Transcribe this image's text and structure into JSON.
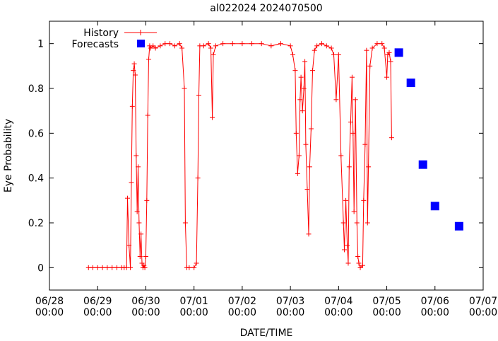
{
  "chart_data": {
    "type": "line",
    "title": "al022024 2024070500",
    "xlabel": "DATE/TIME",
    "ylabel": "Eye Probability",
    "xlim": [
      "06/28 00:00",
      "07/07 00:00"
    ],
    "ylim": [
      -0.1,
      1.1
    ],
    "x_ticks": [
      {
        "date": "06/28",
        "time": "00:00",
        "day": 0
      },
      {
        "date": "06/29",
        "time": "00:00",
        "day": 1
      },
      {
        "date": "06/30",
        "time": "00:00",
        "day": 2
      },
      {
        "date": "07/01",
        "time": "00:00",
        "day": 3
      },
      {
        "date": "07/02",
        "time": "00:00",
        "day": 4
      },
      {
        "date": "07/03",
        "time": "00:00",
        "day": 5
      },
      {
        "date": "07/04",
        "time": "00:00",
        "day": 6
      },
      {
        "date": "07/05",
        "time": "00:00",
        "day": 7
      },
      {
        "date": "07/06",
        "time": "00:00",
        "day": 8
      },
      {
        "date": "07/07",
        "time": "00:00",
        "day": 9
      }
    ],
    "y_ticks": [
      "0",
      "0.2",
      "0.4",
      "0.6",
      "0.8",
      "1"
    ],
    "legend_position": "top-left",
    "series": [
      {
        "name": "History",
        "color": "#ff0000",
        "marker": "plus",
        "points": [
          [
            0.81,
            0.0
          ],
          [
            0.9,
            0.0
          ],
          [
            1.0,
            0.0
          ],
          [
            1.1,
            0.0
          ],
          [
            1.2,
            0.0
          ],
          [
            1.3,
            0.0
          ],
          [
            1.4,
            0.0
          ],
          [
            1.5,
            0.0
          ],
          [
            1.55,
            0.0
          ],
          [
            1.6,
            0.0
          ],
          [
            1.62,
            0.31
          ],
          [
            1.65,
            0.1
          ],
          [
            1.68,
            0.0
          ],
          [
            1.7,
            0.38
          ],
          [
            1.72,
            0.72
          ],
          [
            1.74,
            0.88
          ],
          [
            1.76,
            0.91
          ],
          [
            1.78,
            0.86
          ],
          [
            1.8,
            0.5
          ],
          [
            1.82,
            0.25
          ],
          [
            1.84,
            0.45
          ],
          [
            1.86,
            0.2
          ],
          [
            1.88,
            0.05
          ],
          [
            1.9,
            0.15
          ],
          [
            1.92,
            0.02
          ],
          [
            1.94,
            0.0
          ],
          [
            1.96,
            0.01
          ],
          [
            1.98,
            0.0
          ],
          [
            2.0,
            0.05
          ],
          [
            2.02,
            0.3
          ],
          [
            2.04,
            0.68
          ],
          [
            2.06,
            0.93
          ],
          [
            2.08,
            0.99
          ],
          [
            2.1,
            0.98
          ],
          [
            2.15,
            0.99
          ],
          [
            2.2,
            0.98
          ],
          [
            2.3,
            0.99
          ],
          [
            2.4,
            1.0
          ],
          [
            2.5,
            1.0
          ],
          [
            2.6,
            0.99
          ],
          [
            2.7,
            1.0
          ],
          [
            2.75,
            0.98
          ],
          [
            2.8,
            0.8
          ],
          [
            2.82,
            0.2
          ],
          [
            2.85,
            0.0
          ],
          [
            2.9,
            0.0
          ],
          [
            3.0,
            0.0
          ],
          [
            3.05,
            0.02
          ],
          [
            3.08,
            0.4
          ],
          [
            3.1,
            0.77
          ],
          [
            3.12,
            0.99
          ],
          [
            3.2,
            0.99
          ],
          [
            3.3,
            1.0
          ],
          [
            3.35,
            0.98
          ],
          [
            3.38,
            0.67
          ],
          [
            3.4,
            0.95
          ],
          [
            3.45,
            0.99
          ],
          [
            3.6,
            1.0
          ],
          [
            3.8,
            1.0
          ],
          [
            4.0,
            1.0
          ],
          [
            4.2,
            1.0
          ],
          [
            4.4,
            1.0
          ],
          [
            4.6,
            0.99
          ],
          [
            4.8,
            1.0
          ],
          [
            5.0,
            0.99
          ],
          [
            5.05,
            0.95
          ],
          [
            5.1,
            0.88
          ],
          [
            5.12,
            0.6
          ],
          [
            5.15,
            0.42
          ],
          [
            5.18,
            0.5
          ],
          [
            5.2,
            0.75
          ],
          [
            5.22,
            0.85
          ],
          [
            5.25,
            0.7
          ],
          [
            5.28,
            0.8
          ],
          [
            5.3,
            0.92
          ],
          [
            5.32,
            0.55
          ],
          [
            5.35,
            0.35
          ],
          [
            5.38,
            0.15
          ],
          [
            5.4,
            0.45
          ],
          [
            5.43,
            0.62
          ],
          [
            5.46,
            0.88
          ],
          [
            5.5,
            0.97
          ],
          [
            5.55,
            0.99
          ],
          [
            5.65,
            1.0
          ],
          [
            5.75,
            0.99
          ],
          [
            5.85,
            0.98
          ],
          [
            5.9,
            0.95
          ],
          [
            5.95,
            0.75
          ],
          [
            6.0,
            0.95
          ],
          [
            6.05,
            0.5
          ],
          [
            6.1,
            0.2
          ],
          [
            6.12,
            0.08
          ],
          [
            6.15,
            0.3
          ],
          [
            6.18,
            0.1
          ],
          [
            6.2,
            0.02
          ],
          [
            6.22,
            0.45
          ],
          [
            6.25,
            0.65
          ],
          [
            6.28,
            0.85
          ],
          [
            6.3,
            0.6
          ],
          [
            6.32,
            0.25
          ],
          [
            6.35,
            0.75
          ],
          [
            6.38,
            0.2
          ],
          [
            6.4,
            0.05
          ],
          [
            6.42,
            0.02
          ],
          [
            6.45,
            0.0
          ],
          [
            6.5,
            0.01
          ],
          [
            6.52,
            0.3
          ],
          [
            6.55,
            0.55
          ],
          [
            6.58,
            0.97
          ],
          [
            6.6,
            0.2
          ],
          [
            6.62,
            0.45
          ],
          [
            6.65,
            0.9
          ],
          [
            6.7,
            0.98
          ],
          [
            6.8,
            1.0
          ],
          [
            6.9,
            1.0
          ],
          [
            6.95,
            0.98
          ],
          [
            7.0,
            0.85
          ],
          [
            7.02,
            0.95
          ],
          [
            7.05,
            0.96
          ],
          [
            7.08,
            0.92
          ],
          [
            7.1,
            0.58
          ]
        ]
      },
      {
        "name": "Forecasts",
        "color": "#0000ff",
        "marker": "square",
        "points": [
          [
            7.25,
            0.96
          ],
          [
            7.5,
            0.825
          ],
          [
            7.75,
            0.46
          ],
          [
            8.0,
            0.275
          ],
          [
            8.5,
            0.185
          ]
        ]
      }
    ]
  }
}
